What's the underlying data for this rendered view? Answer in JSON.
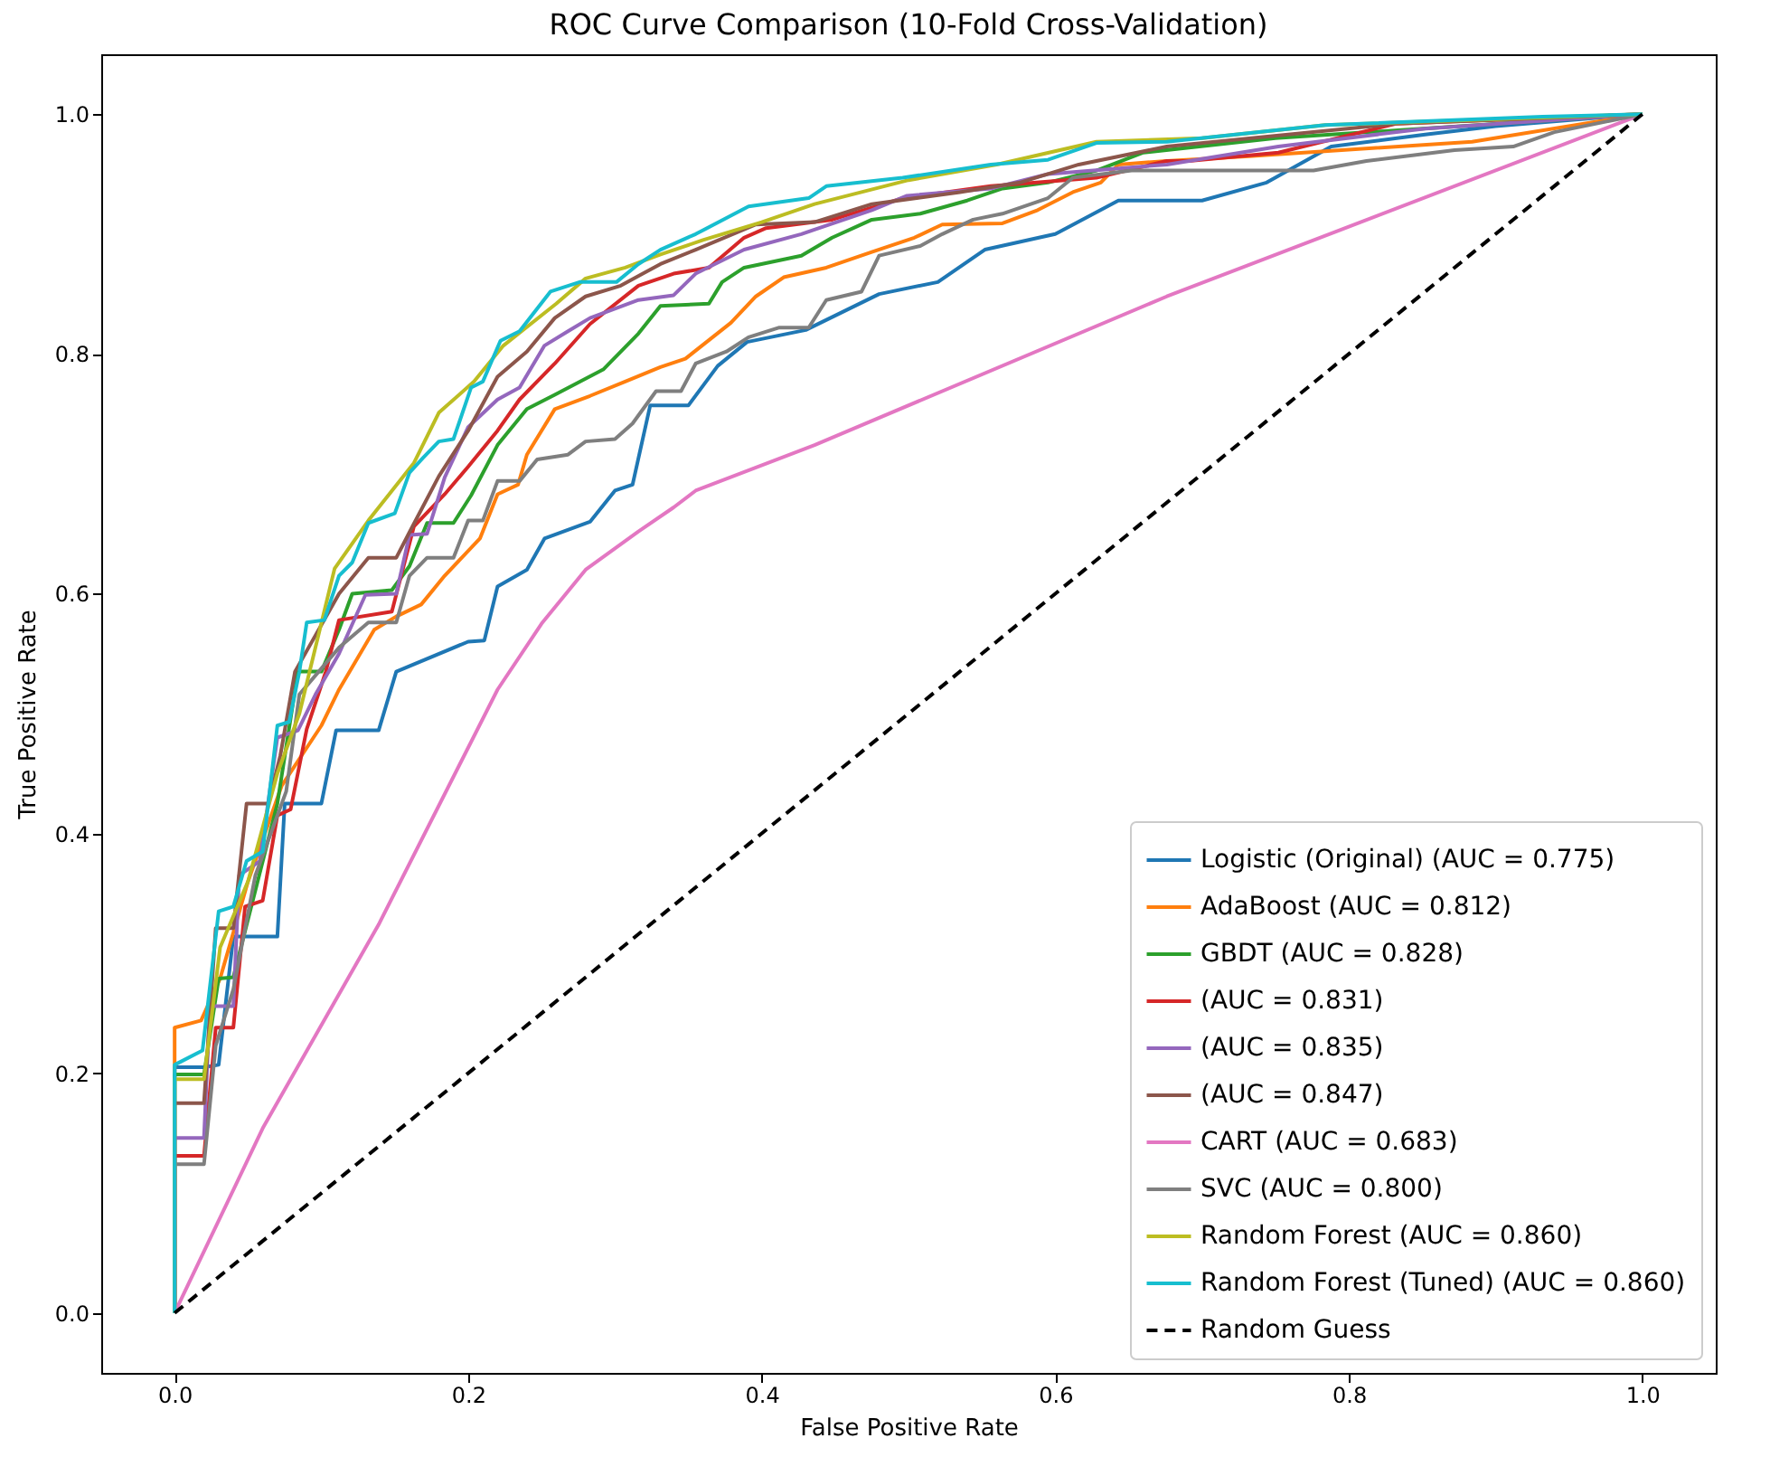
{
  "chart_data": {
    "type": "line",
    "title": "ROC Curve Comparison (10-Fold Cross-Validation)",
    "xlabel": "False Positive Rate",
    "ylabel": "True Positive Rate",
    "xlim": [
      -0.05,
      1.05
    ],
    "ylim": [
      -0.05,
      1.05
    ],
    "xticks": [
      {
        "value": 0,
        "label": "0.0"
      },
      0.2,
      0.4,
      0.6,
      0.8,
      {
        "value": 1,
        "label": "1.0"
      }
    ],
    "yticks": [
      {
        "value": 0,
        "label": "0.0"
      },
      0.2,
      0.4,
      0.6,
      0.8,
      {
        "value": 1,
        "label": "1.0"
      }
    ],
    "legend": "bottom right",
    "grid": false,
    "line_style": "solid",
    "series": [
      {
        "name": "Logistic (Original) (AUC = 0.775)",
        "color": "#1f77b4",
        "x": [
          0,
          0,
          0.02,
          0.03,
          0.04,
          0.07,
          0.075,
          0.1,
          0.11,
          0.139,
          0.151,
          0.2,
          0.211,
          0.22,
          0.24,
          0.252,
          0.283,
          0.3,
          0.312,
          0.324,
          0.35,
          0.37,
          0.39,
          0.43,
          0.48,
          0.52,
          0.552,
          0.6,
          0.643,
          0.7,
          0.744,
          0.788,
          0.852,
          0.9,
          1
        ],
        "values": [
          0,
          0.205,
          0.205,
          0.207,
          0.314,
          0.314,
          0.425,
          0.425,
          0.486,
          0.486,
          0.535,
          0.56,
          0.561,
          0.606,
          0.62,
          0.646,
          0.66,
          0.686,
          0.691,
          0.757,
          0.757,
          0.79,
          0.81,
          0.82,
          0.85,
          0.86,
          0.887,
          0.9,
          0.928,
          0.928,
          0.943,
          0.973,
          0.983,
          0.99,
          1
        ]
      },
      {
        "name": "AdaBoost (AUC = 0.812)",
        "color": "#ff7f0e",
        "x": [
          0,
          0,
          0.018,
          0.031,
          0.05,
          0.073,
          0.1,
          0.112,
          0.136,
          0.151,
          0.168,
          0.184,
          0.208,
          0.22,
          0.234,
          0.24,
          0.259,
          0.283,
          0.307,
          0.331,
          0.348,
          0.379,
          0.396,
          0.415,
          0.444,
          0.475,
          0.504,
          0.523,
          0.564,
          0.588,
          0.612,
          0.631,
          0.643,
          0.676,
          0.732,
          0.884,
          1
        ],
        "values": [
          0,
          0.238,
          0.244,
          0.279,
          0.36,
          0.44,
          0.49,
          0.52,
          0.57,
          0.581,
          0.591,
          0.615,
          0.646,
          0.683,
          0.691,
          0.716,
          0.754,
          0.765,
          0.777,
          0.789,
          0.796,
          0.826,
          0.848,
          0.864,
          0.872,
          0.885,
          0.897,
          0.908,
          0.909,
          0.92,
          0.935,
          0.943,
          0.958,
          0.961,
          0.965,
          0.977,
          1
        ]
      },
      {
        "name": "GBDT (AUC = 0.828)",
        "color": "#2ca02c",
        "x": [
          0,
          0,
          0.02,
          0.03,
          0.04,
          0.07,
          0.084,
          0.1,
          0.112,
          0.121,
          0.148,
          0.16,
          0.172,
          0.19,
          0.202,
          0.22,
          0.24,
          0.259,
          0.292,
          0.316,
          0.331,
          0.364,
          0.373,
          0.388,
          0.427,
          0.448,
          0.475,
          0.508,
          0.54,
          0.564,
          0.595,
          0.628,
          0.66,
          0.75,
          1
        ],
        "values": [
          0,
          0.199,
          0.199,
          0.279,
          0.28,
          0.425,
          0.535,
          0.535,
          0.57,
          0.6,
          0.603,
          0.623,
          0.659,
          0.659,
          0.682,
          0.724,
          0.754,
          0.766,
          0.787,
          0.817,
          0.84,
          0.842,
          0.86,
          0.872,
          0.882,
          0.897,
          0.912,
          0.917,
          0.928,
          0.938,
          0.943,
          0.953,
          0.968,
          0.98,
          1
        ]
      },
      {
        "name": "(AUC = 0.831)",
        "color": "#d62728",
        "x": [
          0,
          0,
          0.02,
          0.028,
          0.04,
          0.048,
          0.06,
          0.07,
          0.079,
          0.09,
          0.103,
          0.112,
          0.148,
          0.163,
          0.184,
          0.2,
          0.22,
          0.235,
          0.259,
          0.283,
          0.316,
          0.34,
          0.364,
          0.388,
          0.403,
          0.448,
          0.496,
          0.556,
          0.628,
          0.676,
          0.691,
          0.752,
          0.832,
          1
        ],
        "values": [
          0,
          0.131,
          0.131,
          0.238,
          0.238,
          0.339,
          0.344,
          0.415,
          0.42,
          0.487,
          0.535,
          0.578,
          0.585,
          0.656,
          0.683,
          0.706,
          0.736,
          0.762,
          0.792,
          0.825,
          0.857,
          0.867,
          0.872,
          0.897,
          0.905,
          0.912,
          0.93,
          0.94,
          0.947,
          0.961,
          0.961,
          0.968,
          0.992,
          1
        ]
      },
      {
        "name": "(AUC = 0.835)",
        "color": "#9467bd",
        "x": [
          0,
          0,
          0.02,
          0.024,
          0.04,
          0.044,
          0.058,
          0.07,
          0.084,
          0.096,
          0.112,
          0.13,
          0.151,
          0.16,
          0.172,
          0.184,
          0.2,
          0.22,
          0.235,
          0.252,
          0.268,
          0.283,
          0.316,
          0.34,
          0.355,
          0.388,
          0.427,
          0.475,
          0.499,
          0.556,
          0.595,
          0.676,
          0.752,
          0.852,
          1
        ],
        "values": [
          0,
          0.146,
          0.146,
          0.256,
          0.256,
          0.365,
          0.377,
          0.48,
          0.486,
          0.516,
          0.55,
          0.599,
          0.6,
          0.649,
          0.65,
          0.697,
          0.739,
          0.762,
          0.772,
          0.807,
          0.819,
          0.83,
          0.845,
          0.849,
          0.867,
          0.887,
          0.9,
          0.92,
          0.932,
          0.938,
          0.95,
          0.958,
          0.973,
          0.988,
          1
        ]
      },
      {
        "name": "(AUC = 0.847)",
        "color": "#8c564b",
        "x": [
          0,
          0,
          0.02,
          0.028,
          0.04,
          0.049,
          0.064,
          0.072,
          0.082,
          0.112,
          0.132,
          0.151,
          0.162,
          0.18,
          0.2,
          0.22,
          0.24,
          0.259,
          0.28,
          0.304,
          0.319,
          0.331,
          0.355,
          0.396,
          0.436,
          0.475,
          0.535,
          0.576,
          0.616,
          0.676,
          0.832,
          1
        ],
        "values": [
          0,
          0.175,
          0.175,
          0.321,
          0.321,
          0.425,
          0.425,
          0.465,
          0.535,
          0.6,
          0.63,
          0.63,
          0.656,
          0.698,
          0.736,
          0.781,
          0.802,
          0.83,
          0.848,
          0.857,
          0.867,
          0.875,
          0.887,
          0.908,
          0.91,
          0.925,
          0.935,
          0.943,
          0.958,
          0.973,
          0.992,
          1
        ]
      },
      {
        "name": "CART (AUC = 0.683)",
        "color": "#e377c2",
        "x": [
          0,
          0.06,
          0.139,
          0.22,
          0.25,
          0.28,
          0.316,
          0.34,
          0.355,
          0.436,
          0.676,
          1
        ],
        "values": [
          0,
          0.154,
          0.324,
          0.52,
          0.575,
          0.62,
          0.652,
          0.672,
          0.686,
          0.724,
          0.848,
          1
        ]
      },
      {
        "name": "SVC (AUC = 0.800)",
        "color": "#7f7f7f",
        "x": [
          0,
          0,
          0.02,
          0.028,
          0.04,
          0.055,
          0.076,
          0.085,
          0.112,
          0.132,
          0.151,
          0.16,
          0.172,
          0.19,
          0.2,
          0.21,
          0.22,
          0.235,
          0.247,
          0.268,
          0.28,
          0.3,
          0.312,
          0.328,
          0.345,
          0.355,
          0.376,
          0.391,
          0.412,
          0.432,
          0.444,
          0.468,
          0.48,
          0.508,
          0.523,
          0.544,
          0.564,
          0.595,
          0.612,
          0.652,
          0.776,
          0.812,
          0.872,
          0.912,
          0.94,
          1
        ],
        "values": [
          0,
          0.124,
          0.124,
          0.223,
          0.27,
          0.365,
          0.435,
          0.516,
          0.555,
          0.576,
          0.576,
          0.615,
          0.63,
          0.63,
          0.661,
          0.661,
          0.694,
          0.694,
          0.712,
          0.716,
          0.727,
          0.729,
          0.742,
          0.769,
          0.769,
          0.792,
          0.802,
          0.814,
          0.822,
          0.822,
          0.845,
          0.852,
          0.882,
          0.89,
          0.9,
          0.912,
          0.917,
          0.93,
          0.947,
          0.953,
          0.953,
          0.961,
          0.97,
          0.973,
          0.985,
          1
        ]
      },
      {
        "name": "Random Forest (AUC = 0.860)",
        "color": "#bcbd22",
        "x": [
          0,
          0,
          0.02,
          0.031,
          0.05,
          0.07,
          0.085,
          0.109,
          0.132,
          0.163,
          0.18,
          0.204,
          0.224,
          0.26,
          0.28,
          0.307,
          0.331,
          0.36,
          0.4,
          0.436,
          0.5,
          0.56,
          0.628,
          0.7,
          0.784,
          1
        ],
        "values": [
          0,
          0.195,
          0.195,
          0.305,
          0.36,
          0.45,
          0.5,
          0.621,
          0.661,
          0.709,
          0.751,
          0.777,
          0.807,
          0.842,
          0.863,
          0.872,
          0.883,
          0.895,
          0.91,
          0.925,
          0.945,
          0.958,
          0.977,
          0.98,
          0.991,
          1
        ]
      },
      {
        "name": "Random Forest (Tuned) (AUC = 0.860)",
        "color": "#17becf",
        "x": [
          0,
          0,
          0.019,
          0.03,
          0.04,
          0.049,
          0.06,
          0.07,
          0.078,
          0.085,
          0.09,
          0.102,
          0.112,
          0.121,
          0.132,
          0.15,
          0.16,
          0.169,
          0.18,
          0.19,
          0.202,
          0.21,
          0.222,
          0.235,
          0.256,
          0.276,
          0.301,
          0.316,
          0.331,
          0.355,
          0.391,
          0.432,
          0.444,
          0.496,
          0.556,
          0.595,
          0.628,
          0.676,
          0.784,
          0.932,
          1
        ],
        "values": [
          0,
          0.207,
          0.219,
          0.335,
          0.339,
          0.377,
          0.385,
          0.49,
          0.493,
          0.535,
          0.576,
          0.578,
          0.615,
          0.626,
          0.659,
          0.667,
          0.701,
          0.713,
          0.727,
          0.729,
          0.772,
          0.777,
          0.811,
          0.819,
          0.852,
          0.86,
          0.86,
          0.875,
          0.887,
          0.9,
          0.923,
          0.93,
          0.94,
          0.947,
          0.958,
          0.962,
          0.976,
          0.977,
          0.991,
          0.998,
          1
        ]
      },
      {
        "name": "Random Guess",
        "color": "#000000",
        "line_style": "dashed",
        "x": [
          0,
          1
        ],
        "values": [
          0,
          1
        ]
      }
    ]
  }
}
